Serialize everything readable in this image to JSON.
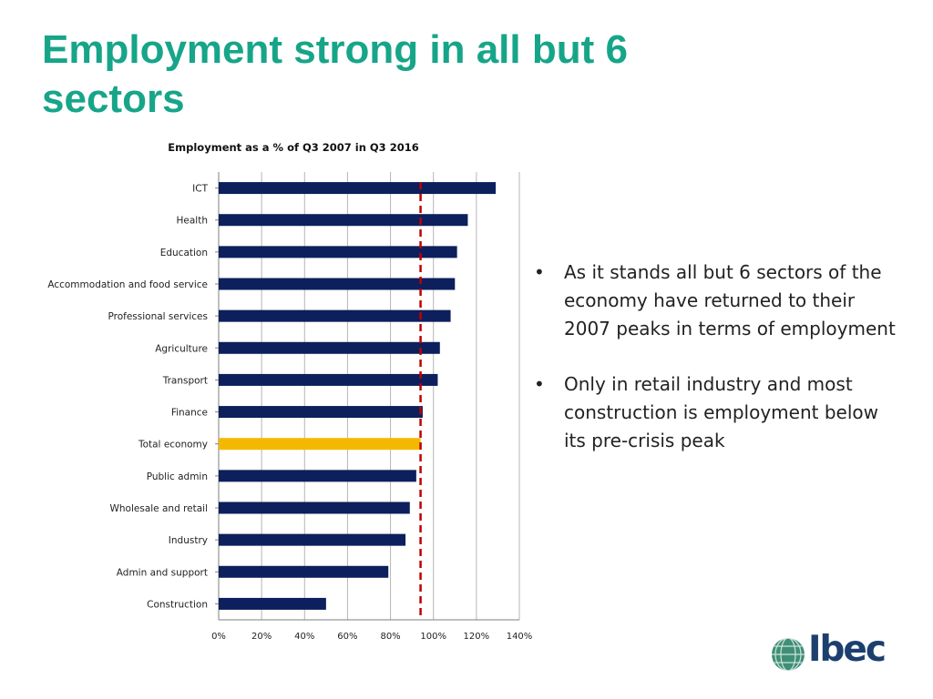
{
  "slide": {
    "title": "Employment strong in all but 6 sectors"
  },
  "bullets": [
    "As it stands all but 6 sectors of the economy have returned to their 2007 peaks in terms of employment",
    "Only in retail industry and most construction is employment below its pre-crisis peak"
  ],
  "logo": {
    "text": "Ibec",
    "icon": "ibec-globe-logo-icon"
  },
  "colors": {
    "title": "#17a589",
    "bar": "#0d1f5c",
    "highlight_bar": "#f5b800",
    "reference_line": "#c00000",
    "logo_mark": "#3f8f76",
    "logo_text": "#1c3f6e"
  },
  "chart_data": {
    "type": "bar",
    "orientation": "horizontal",
    "title": "Employment as a % of Q3 2007 in Q3 2016",
    "categories": [
      "ICT",
      "Health",
      "Education",
      "Accommodation and food service",
      "Professional services",
      "Agriculture",
      "Transport",
      "Finance",
      "Total economy",
      "Public admin",
      "Wholesale and retail",
      "Industry",
      "Admin and support",
      "Construction"
    ],
    "values": [
      129,
      116,
      111,
      110,
      108,
      103,
      102,
      95,
      94,
      92,
      89,
      87,
      79,
      50
    ],
    "highlight_category": "Total economy",
    "reference_line_value": 94,
    "xlim": [
      0,
      140
    ],
    "xticks": [
      "0%",
      "20%",
      "40%",
      "60%",
      "80%",
      "100%",
      "120%",
      "140%"
    ],
    "xlabel": "",
    "ylabel": "",
    "grid": "vertical gridlines",
    "legend": "none"
  }
}
